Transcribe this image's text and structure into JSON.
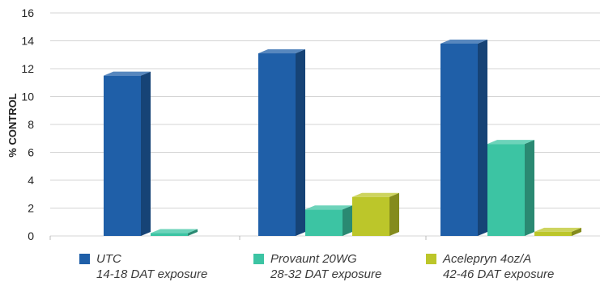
{
  "chart_data": {
    "type": "bar",
    "ylabel": "% CONTROL",
    "xlabel": "",
    "title": "",
    "ylim": [
      0,
      16
    ],
    "yticks": [
      0,
      2,
      4,
      6,
      8,
      10,
      12,
      14,
      16
    ],
    "grid": true,
    "legend_placement": "bottom",
    "series": [
      {
        "name": "UTC",
        "sublabel": "14-18 DAT exposure",
        "color": "#1f5fa8",
        "values": [
          11.5,
          13.1,
          13.8
        ]
      },
      {
        "name": "Provaunt 20WG",
        "sublabel": "28-32 DAT exposure",
        "color": "#3cc4a3",
        "values": [
          0.2,
          1.9,
          6.6
        ]
      },
      {
        "name": "Acelepryn 4oz/A",
        "sublabel": "42-46 DAT exposure",
        "color": "#bcc62a",
        "values": [
          0,
          2.8,
          0.3
        ]
      }
    ]
  }
}
